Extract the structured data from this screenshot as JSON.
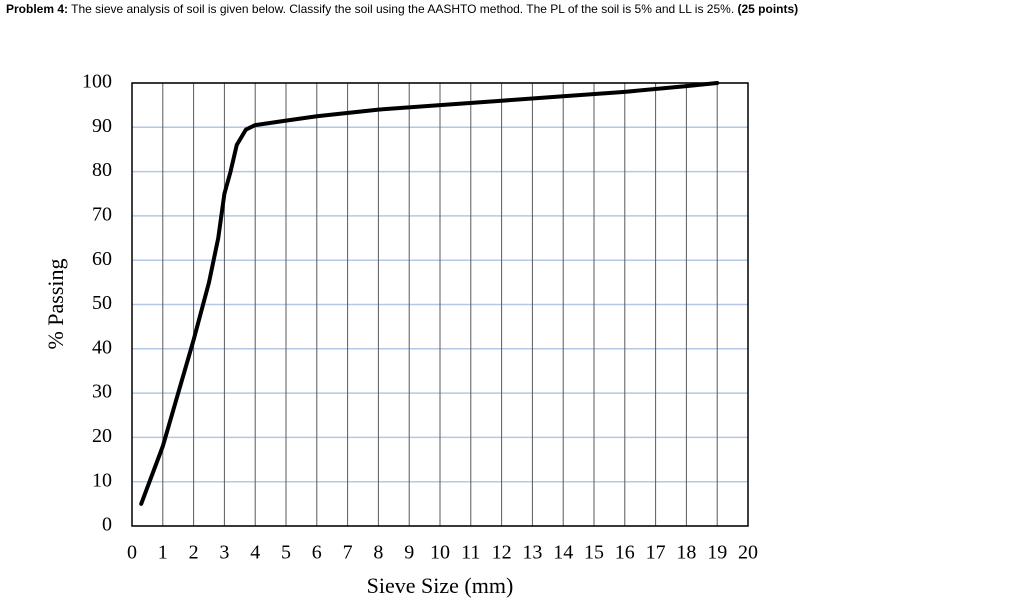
{
  "problem": {
    "label": "Problem 4:",
    "text": "The sieve analysis of soil is given below. Classify the soil using the AASHTO method. The PL of the soil is 5% and LL is 25%.",
    "points": "(25 points)"
  },
  "chart_data": {
    "type": "line",
    "x_label": "Sieve Size (mm)",
    "y_label": "% Passing",
    "xlim": [
      0,
      20
    ],
    "xticks": [
      0,
      1,
      2,
      3,
      4,
      5,
      6,
      7,
      8,
      9,
      10,
      11,
      12,
      13,
      14,
      15,
      16,
      17,
      18,
      19,
      20
    ],
    "ylim": [
      0,
      100
    ],
    "yticks": [
      0,
      10,
      20,
      30,
      40,
      50,
      60,
      70,
      80,
      90,
      100
    ],
    "grid": true,
    "series": [
      {
        "color": "#000000",
        "x": [
          0.3,
          1,
          1.5,
          2,
          2.5,
          2.8,
          3,
          3.2,
          3.4,
          3.7,
          4,
          5,
          6,
          8,
          10,
          12,
          14,
          16,
          18,
          19
        ],
        "values": [
          5,
          18,
          30,
          42,
          55,
          65,
          75,
          80,
          86,
          89.5,
          90.5,
          91.5,
          92.5,
          94,
          95,
          96,
          97,
          98,
          99.3,
          100
        ]
      }
    ]
  }
}
